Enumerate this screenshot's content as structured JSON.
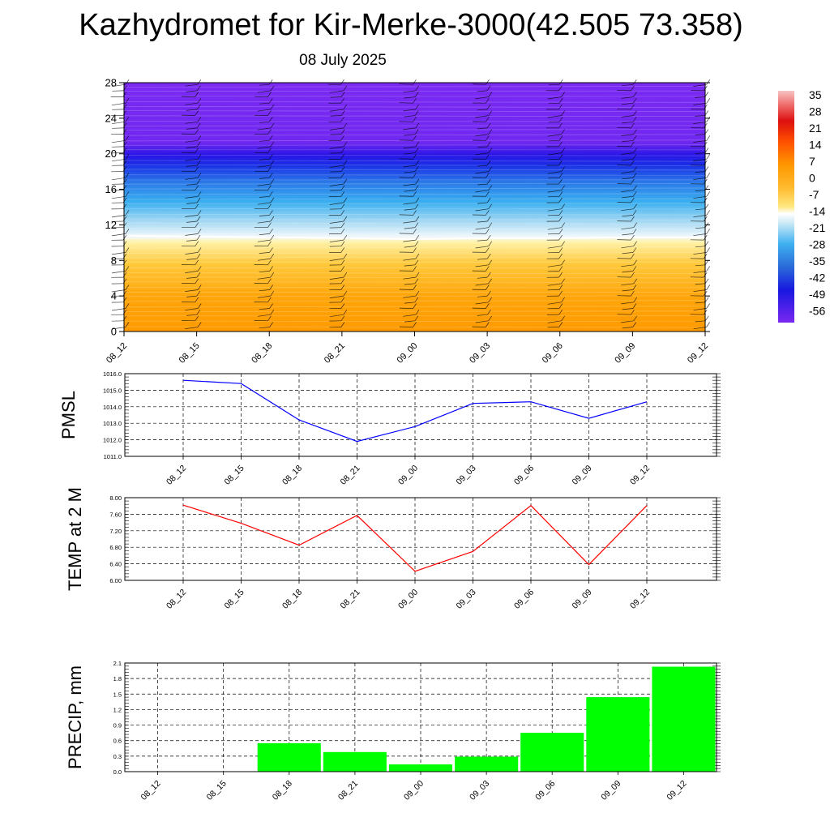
{
  "title": "Kazhydromet for Kir-Merke-3000(42.505 73.358)",
  "subtitle": "08 July 2025",
  "time_labels": [
    "08_12",
    "08_15",
    "08_18",
    "08_21",
    "09_00",
    "09_03",
    "09_06",
    "09_09",
    "09_12"
  ],
  "colorbar": {
    "labels": [
      "35",
      "28",
      "21",
      "14",
      "7",
      "0",
      "-7",
      "-14",
      "-21",
      "-28",
      "-35",
      "-42",
      "-49",
      "-56"
    ],
    "colors": [
      "#f7bcbc",
      "#e83030",
      "#ff7000",
      "#ffa500",
      "#ffcc40",
      "#fff6b0",
      "#cfe9f5",
      "#3fb0f0",
      "#2060d8",
      "#1010e0",
      "#7a28f0"
    ]
  },
  "chart_data": [
    {
      "type": "heatmap",
      "title": "",
      "xlabel": "",
      "ylabel": "",
      "x": [
        "08_12",
        "08_15",
        "08_18",
        "08_21",
        "09_00",
        "09_03",
        "09_06",
        "09_09",
        "09_12"
      ],
      "y_ticks": [
        0,
        4,
        8,
        12,
        16,
        20,
        24,
        28
      ],
      "ylim": [
        0,
        28
      ],
      "colorbar_range": [
        -56,
        35
      ],
      "freezing_level": [
        10.8,
        10.7,
        10.6,
        10.5,
        10.4,
        10.5,
        10.5,
        10.6,
        10.6
      ],
      "temperature_profile": {
        "heights": [
          0,
          4,
          8,
          10.6,
          12,
          16,
          20,
          24,
          28
        ],
        "values": [
          14,
          10,
          5,
          -1,
          -18,
          -40,
          -58,
          -56,
          -55
        ]
      },
      "wind_barbs": true
    },
    {
      "type": "line",
      "ylabel": "PMSL",
      "categories": [
        "08_12",
        "08_15",
        "08_18",
        "08_21",
        "09_00",
        "09_03",
        "09_06",
        "09_09",
        "09_12"
      ],
      "values": [
        1015.6,
        1015.4,
        1013.2,
        1011.9,
        1012.8,
        1014.2,
        1014.3,
        1013.3,
        1014.3
      ],
      "ylim": [
        1011.0,
        1016.0
      ],
      "ticks": [
        "1011.0",
        "1012.0",
        "1013.0",
        "1014.0",
        "1015.0",
        "1016.0"
      ],
      "color": "#0000ff",
      "grid": true
    },
    {
      "type": "line",
      "ylabel": "TEMP at 2 M",
      "categories": [
        "08_12",
        "08_15",
        "08_18",
        "08_21",
        "09_00",
        "09_03",
        "09_06",
        "09_09",
        "09_12"
      ],
      "values": [
        7.82,
        7.38,
        6.85,
        7.57,
        6.22,
        6.7,
        7.81,
        6.38,
        7.81
      ],
      "ylim": [
        6.0,
        8.0
      ],
      "ticks": [
        "6.00",
        "6.40",
        "6.80",
        "7.20",
        "7.60",
        "8.00"
      ],
      "color": "#ff0000",
      "grid": true
    },
    {
      "type": "bar",
      "ylabel": "PRECIP, mm",
      "categories": [
        "08_12",
        "08_15",
        "08_18",
        "08_21",
        "09_00",
        "09_03",
        "09_06",
        "09_09",
        "09_12"
      ],
      "values": [
        0.0,
        0.0,
        0.55,
        0.38,
        0.14,
        0.29,
        0.75,
        1.44,
        2.03
      ],
      "ylim": [
        0.0,
        2.1
      ],
      "ticks": [
        "0.0",
        "0.3",
        "0.6",
        "0.9",
        "1.2",
        "1.5",
        "1.8",
        "2.1"
      ],
      "color": "#00ff00",
      "grid": true
    }
  ]
}
